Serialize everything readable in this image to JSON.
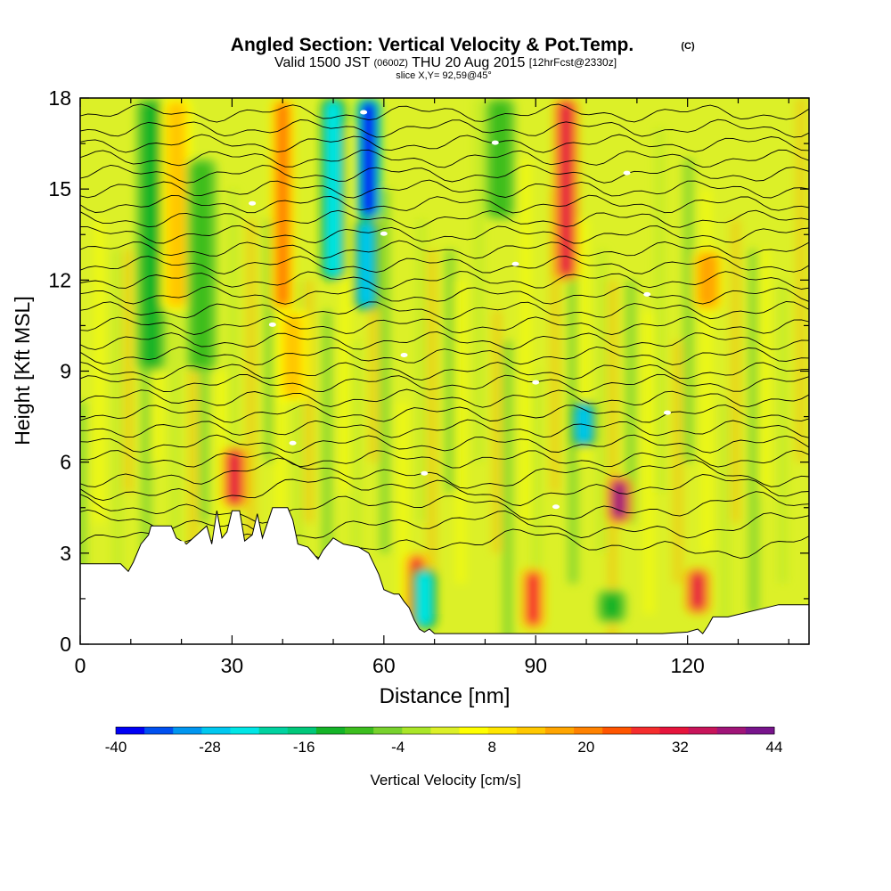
{
  "chart_data": {
    "type": "heatmap",
    "title": "Angled Section: Vertical Velocity & Pot.Temp.",
    "title_unit": "(C)",
    "subtitle": {
      "prefix": "Valid 1500 JST",
      "utc": "(0600Z)",
      "date": "THU 20 Aug 2015",
      "forecast": "[12hrFcst@2330z]"
    },
    "slice_label": "slice X,Y= 92,59@45°",
    "xlabel": "Distance [nm]",
    "ylabel": "Height [Kft MSL]",
    "xlim": [
      0,
      144
    ],
    "ylim": [
      0,
      18
    ],
    "x_ticks": [
      "0",
      "30",
      "60",
      "90",
      "120"
    ],
    "y_ticks": [
      "0",
      "3",
      "6",
      "9",
      "12",
      "15",
      "18"
    ],
    "colorbar": {
      "label": "Vertical Velocity [cm/s]",
      "tick_labels": [
        "-40",
        "-28",
        "-16",
        "-4",
        "8",
        "20",
        "32",
        "44"
      ],
      "min": -40,
      "max": 44,
      "colors": [
        "#0000f5",
        "#0050f0",
        "#0096f0",
        "#00c8f0",
        "#00e6e6",
        "#00d2a0",
        "#00c87a",
        "#14b428",
        "#3cbe1e",
        "#78d22d",
        "#aae628",
        "#dcf028",
        "#ffff00",
        "#ffe600",
        "#ffc800",
        "#ffa500",
        "#ff8200",
        "#ff5500",
        "#f52d2d",
        "#e6143c",
        "#c8145a",
        "#a01478",
        "#78148c"
      ]
    },
    "velocity_features": [
      {
        "x": 14,
        "z_range": [
          9,
          18
        ],
        "w": -14
      },
      {
        "x": 19,
        "z_range": [
          11,
          18
        ],
        "w": 14
      },
      {
        "x": 24,
        "z_range": [
          9,
          16
        ],
        "w": -10
      },
      {
        "x": 30.5,
        "z_range": [
          4.5,
          6.5
        ],
        "w": 32
      },
      {
        "x": 40,
        "z_range": [
          11,
          18
        ],
        "w": 22
      },
      {
        "x": 42,
        "z_range": [
          8,
          11
        ],
        "w": 14
      },
      {
        "x": 50,
        "z_range": [
          12,
          18
        ],
        "w": -24
      },
      {
        "x": 57,
        "z_range": [
          14,
          18
        ],
        "w": -40
      },
      {
        "x": 56.5,
        "z_range": [
          11,
          14
        ],
        "w": -28
      },
      {
        "x": 66.5,
        "z_range": [
          0.5,
          3
        ],
        "w": 26
      },
      {
        "x": 68,
        "z_range": [
          0.5,
          2.5
        ],
        "w": -24
      },
      {
        "x": 83,
        "z_range": [
          14,
          18
        ],
        "w": -10
      },
      {
        "x": 89.5,
        "z_range": [
          0.5,
          2.5
        ],
        "w": 26
      },
      {
        "x": 96,
        "z_range": [
          12,
          18
        ],
        "w": 30
      },
      {
        "x": 99.5,
        "z_range": [
          6.5,
          8
        ],
        "w": -26
      },
      {
        "x": 106.5,
        "z_range": [
          4,
          5.5
        ],
        "w": 38
      },
      {
        "x": 105,
        "z_range": [
          0.7,
          1.8
        ],
        "w": -14
      },
      {
        "x": 122,
        "z_range": [
          1,
          2.5
        ],
        "w": 30
      },
      {
        "x": 124,
        "z_range": [
          11,
          13
        ],
        "w": 18
      }
    ],
    "theta_contours": {
      "z_levels": [
        3.3,
        3.9,
        4.5,
        5.1,
        5.6,
        6.1,
        6.6,
        7.1,
        7.6,
        8.1,
        8.6,
        9.0,
        9.5,
        10.0,
        10.5,
        11.0,
        11.5,
        12.0,
        12.5,
        13.0,
        13.5,
        14.0,
        14.5,
        15.0,
        15.5,
        16.0,
        16.5,
        17.0,
        17.5
      ]
    },
    "terrain": {
      "x": [
        0,
        8,
        9.5,
        10.5,
        12,
        13.5,
        14,
        18,
        19,
        21,
        23,
        25,
        26,
        27,
        28,
        29,
        30,
        31.5,
        32.5,
        34,
        35,
        36,
        38,
        41,
        42,
        43,
        45,
        47,
        48,
        50,
        52,
        55,
        57,
        59,
        60,
        62,
        63,
        64,
        65,
        66,
        67,
        68,
        69,
        70,
        88,
        90,
        92,
        95,
        110,
        115,
        120,
        122,
        123,
        124,
        125,
        128,
        138,
        144
      ],
      "z": [
        2.65,
        2.65,
        2.4,
        2.7,
        3.3,
        3.6,
        3.9,
        3.9,
        3.5,
        3.3,
        3.6,
        3.9,
        3.3,
        4.4,
        3.5,
        3.7,
        4.4,
        4.4,
        3.4,
        3.6,
        4.3,
        3.5,
        4.5,
        4.5,
        4.1,
        3.3,
        3.2,
        2.8,
        3.1,
        3.5,
        3.3,
        3.2,
        3.0,
        2.3,
        1.8,
        1.65,
        1.65,
        1.4,
        1.2,
        0.8,
        0.5,
        0.4,
        0.5,
        0.35,
        0.35,
        0.35,
        0.35,
        0.35,
        0.35,
        0.35,
        0.4,
        0.5,
        0.35,
        0.6,
        0.9,
        0.9,
        1.3,
        1.3
      ]
    }
  }
}
